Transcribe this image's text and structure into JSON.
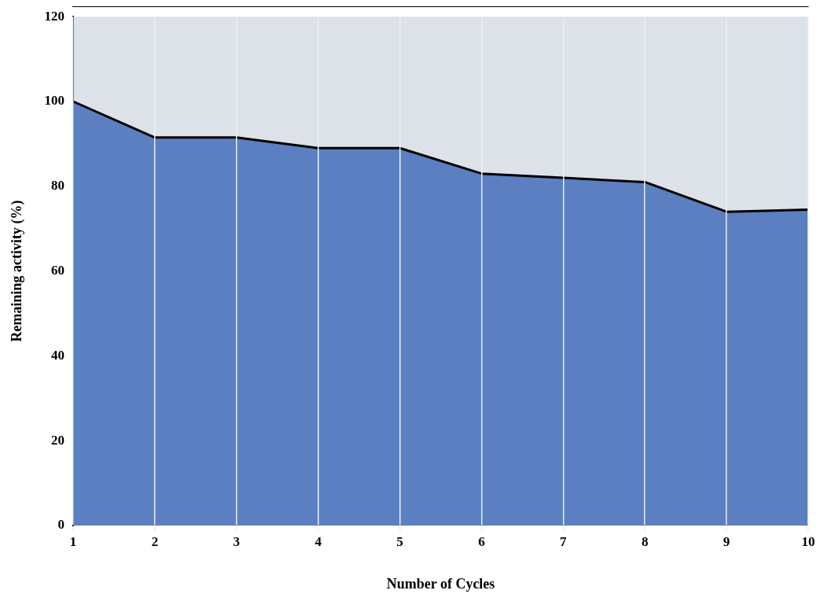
{
  "chart_data": {
    "type": "area",
    "xlabel": "Number of Cycles",
    "ylabel": "Remaining activity (%)",
    "x": [
      1,
      2,
      3,
      4,
      5,
      6,
      7,
      8,
      9,
      10
    ],
    "series": [
      {
        "color": "#5b7fc0",
        "values": [
          100,
          91.5,
          91.5,
          89,
          89,
          83,
          82,
          81,
          74,
          74.5
        ]
      }
    ],
    "xlim": [
      1,
      10
    ],
    "xticks": [
      1,
      2,
      3,
      4,
      5,
      6,
      7,
      8,
      9,
      10
    ],
    "ylim": [
      0,
      120
    ],
    "yticks": [
      0,
      20,
      40,
      60,
      80,
      100,
      120
    ],
    "grid": "x"
  }
}
